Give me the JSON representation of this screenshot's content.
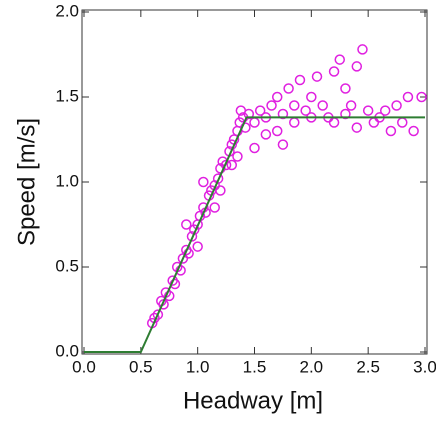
{
  "chart_data": {
    "type": "scatter",
    "x_label": "Headway [m]",
    "y_label": "Speed [m/s]",
    "xlim": [
      0,
      3
    ],
    "ylim": [
      0,
      2
    ],
    "xticks": [
      {
        "value": 0,
        "label": "0.0"
      },
      {
        "value": 0.5,
        "label": "0.5"
      },
      {
        "value": 1,
        "label": "1.0"
      },
      {
        "value": 1.5,
        "label": "1.5"
      },
      {
        "value": 2,
        "label": "2.0"
      },
      {
        "value": 2.5,
        "label": "2.5"
      },
      {
        "value": 3,
        "label": "3.0"
      }
    ],
    "yticks": [
      {
        "value": 0,
        "label": "0.0"
      },
      {
        "value": 0.5,
        "label": "0.5"
      },
      {
        "value": 1,
        "label": "1.0"
      },
      {
        "value": 1.5,
        "label": "1.5"
      },
      {
        "value": 2,
        "label": "2.0"
      }
    ],
    "series": [
      {
        "style": "markers",
        "color": "#e020e0",
        "x": [
          0.6,
          0.62,
          0.65,
          0.68,
          0.7,
          0.72,
          0.75,
          0.78,
          0.8,
          0.82,
          0.85,
          0.87,
          0.9,
          0.92,
          0.95,
          0.97,
          1.0,
          1.02,
          1.05,
          1.07,
          1.1,
          1.12,
          1.15,
          1.18,
          1.2,
          1.22,
          1.25,
          1.28,
          1.3,
          1.32,
          1.35,
          1.37,
          1.4,
          1.42,
          0.9,
          1.0,
          1.05,
          1.15,
          1.2,
          1.3,
          1.35,
          1.38,
          1.45,
          1.5,
          1.55,
          1.6,
          1.65,
          1.7,
          1.75,
          1.8,
          1.85,
          1.9,
          1.95,
          2.0,
          2.05,
          2.1,
          2.15,
          2.2,
          2.25,
          2.3,
          2.35,
          2.4,
          2.45,
          2.5,
          2.55,
          2.6,
          2.7,
          2.75,
          2.8,
          2.9,
          2.97,
          1.6,
          1.7,
          1.75,
          1.5,
          2.0,
          2.2,
          2.4,
          2.65,
          2.85,
          1.85,
          2.3
        ],
        "values": [
          0.17,
          0.2,
          0.22,
          0.3,
          0.28,
          0.35,
          0.33,
          0.42,
          0.4,
          0.5,
          0.48,
          0.55,
          0.6,
          0.58,
          0.68,
          0.72,
          0.75,
          0.8,
          0.85,
          0.82,
          0.92,
          0.95,
          0.98,
          1.02,
          1.08,
          1.12,
          1.1,
          1.18,
          1.22,
          1.25,
          1.3,
          1.35,
          1.38,
          1.32,
          0.75,
          0.62,
          1.0,
          0.85,
          0.95,
          1.1,
          1.15,
          1.42,
          1.4,
          1.35,
          1.42,
          1.38,
          1.45,
          1.5,
          1.4,
          1.55,
          1.45,
          1.6,
          1.42,
          1.5,
          1.62,
          1.45,
          1.38,
          1.65,
          1.72,
          1.4,
          1.45,
          1.68,
          1.78,
          1.42,
          1.35,
          1.38,
          1.3,
          1.45,
          1.35,
          1.3,
          1.5,
          1.28,
          1.3,
          1.22,
          1.2,
          1.38,
          1.35,
          1.32,
          1.42,
          1.5,
          1.35,
          1.55
        ]
      },
      {
        "style": "line",
        "color": "#2e7d32",
        "x": [
          0,
          0.5,
          1.43,
          3.0
        ],
        "values": [
          0,
          0,
          1.38,
          1.38
        ]
      }
    ]
  }
}
